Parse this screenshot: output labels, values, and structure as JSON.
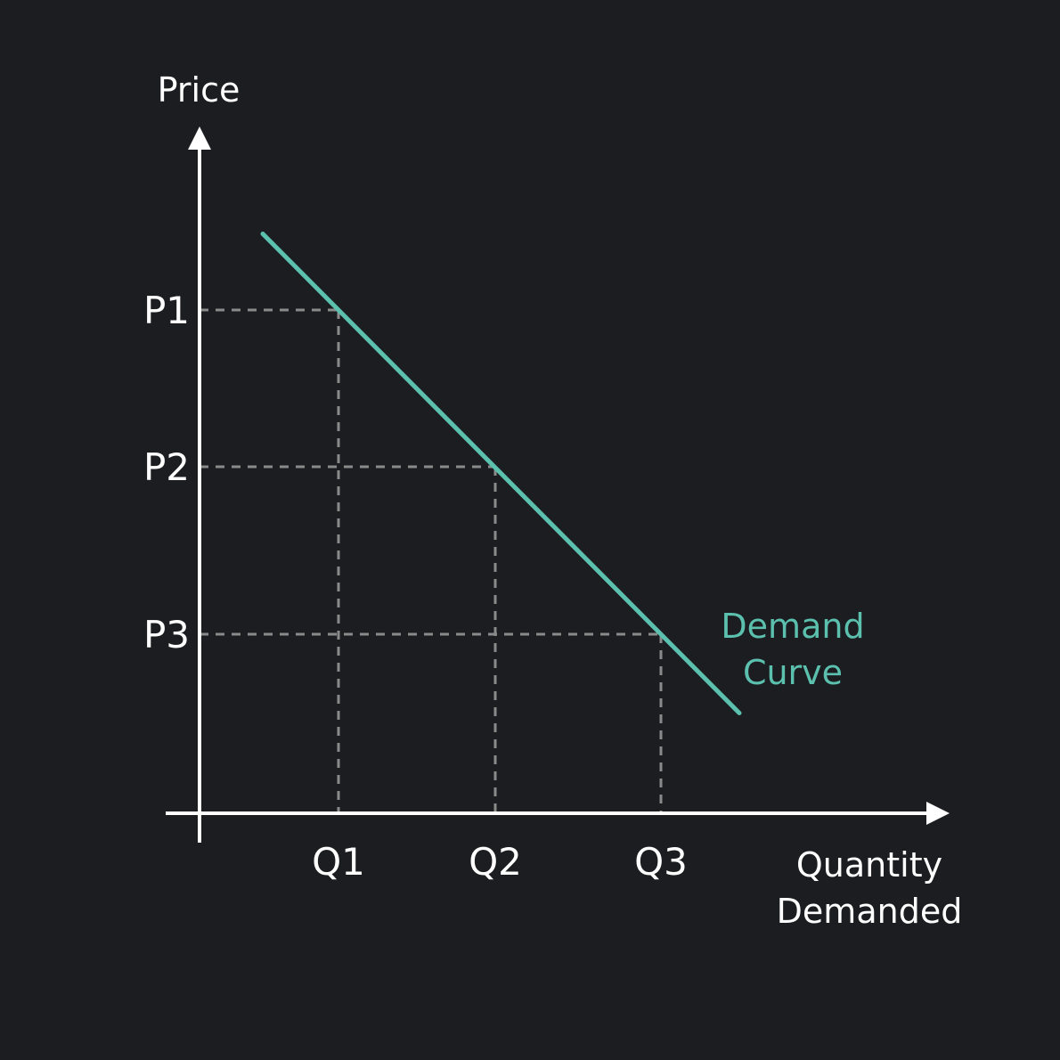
{
  "chart_data": {
    "type": "line",
    "title": "",
    "ylabel": "Price",
    "xlabel_lines": [
      "Quantity",
      "Demanded"
    ],
    "price_ticks": [
      "P1",
      "P2",
      "P3"
    ],
    "quantity_ticks": [
      "Q1",
      "Q2",
      "Q3"
    ],
    "series": [
      {
        "name_lines": [
          "Demand",
          "Curve"
        ],
        "color": "#5bc0ae",
        "points": [
          {
            "x": "Q1",
            "y": "P1"
          },
          {
            "x": "Q2",
            "y": "P2"
          },
          {
            "x": "Q3",
            "y": "P3"
          }
        ]
      }
    ],
    "guides": "dashed",
    "grid": false,
    "colors": {
      "background": "#1c1d20",
      "axis": "#ffffff",
      "guide": "#8a8a8a",
      "curve": "#5bc0ae"
    }
  }
}
